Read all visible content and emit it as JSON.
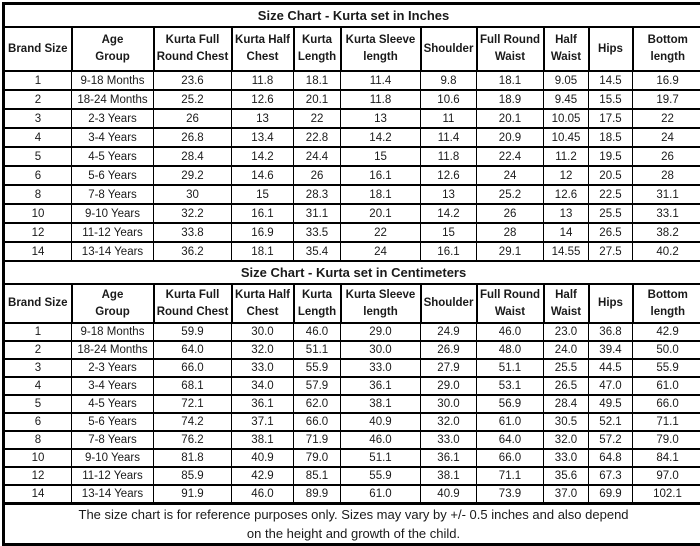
{
  "colors": {
    "background": "#ffffff",
    "border": "#000000",
    "text": "#1a1a1a"
  },
  "columns": [
    {
      "lines": [
        "Brand Size"
      ]
    },
    {
      "lines": [
        "Age",
        "Group"
      ]
    },
    {
      "lines": [
        "Kurta Full",
        "Round Chest"
      ]
    },
    {
      "lines": [
        "Kurta Half",
        "Chest"
      ]
    },
    {
      "lines": [
        "Kurta",
        "Length"
      ]
    },
    {
      "lines": [
        "Kurta Sleeve",
        "length"
      ]
    },
    {
      "lines": [
        "Shoulder"
      ]
    },
    {
      "lines": [
        "Full Round",
        "Waist"
      ]
    },
    {
      "lines": [
        "Half",
        "Waist"
      ]
    },
    {
      "lines": [
        "Hips"
      ]
    },
    {
      "lines": [
        "Bottom",
        "length"
      ]
    }
  ],
  "sections": [
    {
      "title": "Size Chart - Kurta set in Inches",
      "rows": [
        [
          "1",
          "9-18 Months",
          "23.6",
          "11.8",
          "18.1",
          "11.4",
          "9.8",
          "18.1",
          "9.05",
          "14.5",
          "16.9"
        ],
        [
          "2",
          "18-24 Months",
          "25.2",
          "12.6",
          "20.1",
          "11.8",
          "10.6",
          "18.9",
          "9.45",
          "15.5",
          "19.7"
        ],
        [
          "3",
          "2-3 Years",
          "26",
          "13",
          "22",
          "13",
          "11",
          "20.1",
          "10.05",
          "17.5",
          "22"
        ],
        [
          "4",
          "3-4 Years",
          "26.8",
          "13.4",
          "22.8",
          "14.2",
          "11.4",
          "20.9",
          "10.45",
          "18.5",
          "24"
        ],
        [
          "5",
          "4-5 Years",
          "28.4",
          "14.2",
          "24.4",
          "15",
          "11.8",
          "22.4",
          "11.2",
          "19.5",
          "26"
        ],
        [
          "6",
          "5-6 Years",
          "29.2",
          "14.6",
          "26",
          "16.1",
          "12.6",
          "24",
          "12",
          "20.5",
          "28"
        ],
        [
          "8",
          "7-8 Years",
          "30",
          "15",
          "28.3",
          "18.1",
          "13",
          "25.2",
          "12.6",
          "22.5",
          "31.1"
        ],
        [
          "10",
          "9-10 Years",
          "32.2",
          "16.1",
          "31.1",
          "20.1",
          "14.2",
          "26",
          "13",
          "25.5",
          "33.1"
        ],
        [
          "12",
          "11-12 Years",
          "33.8",
          "16.9",
          "33.5",
          "22",
          "15",
          "28",
          "14",
          "26.5",
          "38.2"
        ],
        [
          "14",
          "13-14 Years",
          "36.2",
          "18.1",
          "35.4",
          "24",
          "16.1",
          "29.1",
          "14.55",
          "27.5",
          "40.2"
        ]
      ]
    },
    {
      "title": "Size Chart - Kurta set in Centimeters",
      "rows": [
        [
          "1",
          "9-18 Months",
          "59.9",
          "30.0",
          "46.0",
          "29.0",
          "24.9",
          "46.0",
          "23.0",
          "36.8",
          "42.9"
        ],
        [
          "2",
          "18-24 Months",
          "64.0",
          "32.0",
          "51.1",
          "30.0",
          "26.9",
          "48.0",
          "24.0",
          "39.4",
          "50.0"
        ],
        [
          "3",
          "2-3 Years",
          "66.0",
          "33.0",
          "55.9",
          "33.0",
          "27.9",
          "51.1",
          "25.5",
          "44.5",
          "55.9"
        ],
        [
          "4",
          "3-4 Years",
          "68.1",
          "34.0",
          "57.9",
          "36.1",
          "29.0",
          "53.1",
          "26.5",
          "47.0",
          "61.0"
        ],
        [
          "5",
          "4-5 Years",
          "72.1",
          "36.1",
          "62.0",
          "38.1",
          "30.0",
          "56.9",
          "28.4",
          "49.5",
          "66.0"
        ],
        [
          "6",
          "5-6 Years",
          "74.2",
          "37.1",
          "66.0",
          "40.9",
          "32.0",
          "61.0",
          "30.5",
          "52.1",
          "71.1"
        ],
        [
          "8",
          "7-8 Years",
          "76.2",
          "38.1",
          "71.9",
          "46.0",
          "33.0",
          "64.0",
          "32.0",
          "57.2",
          "79.0"
        ],
        [
          "10",
          "9-10 Years",
          "81.8",
          "40.9",
          "79.0",
          "51.1",
          "36.1",
          "66.0",
          "33.0",
          "64.8",
          "84.1"
        ],
        [
          "12",
          "11-12 Years",
          "85.9",
          "42.9",
          "85.1",
          "55.9",
          "38.1",
          "71.1",
          "35.6",
          "67.3",
          "97.0"
        ],
        [
          "14",
          "13-14 Years",
          "91.9",
          "46.0",
          "89.9",
          "61.0",
          "40.9",
          "73.9",
          "37.0",
          "69.9",
          "102.1"
        ]
      ]
    }
  ],
  "footer": {
    "line1": "The size chart is for reference purposes only. Sizes may vary by +/- 0.5 inches and also depend",
    "line2": "on the height and growth of the child."
  }
}
